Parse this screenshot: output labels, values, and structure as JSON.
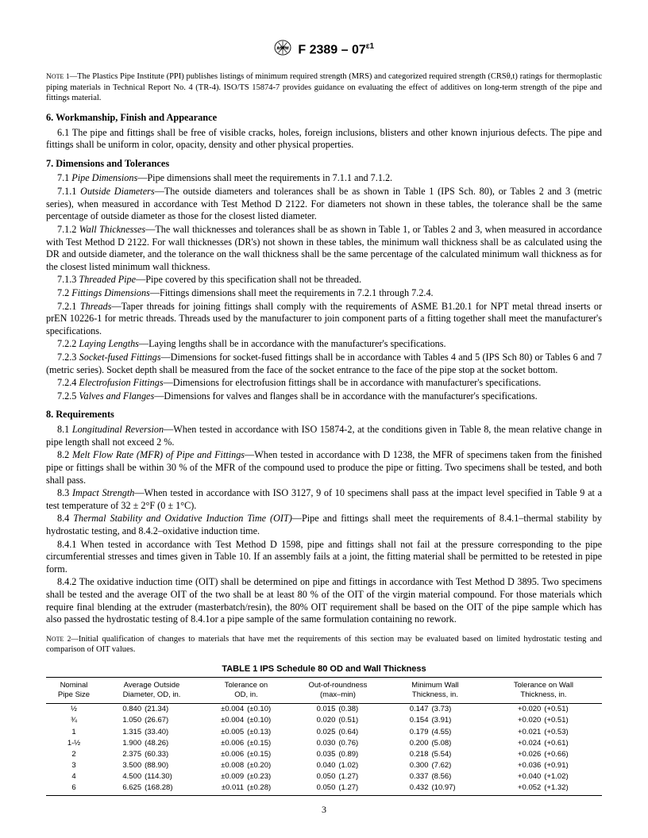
{
  "header": {
    "designation": "F 2389 – 07",
    "eps": "ε1"
  },
  "note1": {
    "label": "NOTE 1—",
    "text": "The Plastics Pipe Institute (PPI) publishes listings of minimum required strength (MRS) and categorized required strength (CRSθ,t) ratings for thermoplastic piping materials in Technical Report No. 4 (TR-4). ISO/TS 15874-7 provides guidance on evaluating the effect of additives on long-term strength of the pipe and fittings material."
  },
  "s6": {
    "title": "6.  Workmanship, Finish and Appearance",
    "p1": "6.1  The pipe and fittings shall be free of visible cracks, holes, foreign inclusions, blisters and other known injurious defects. The pipe and fittings shall be uniform in color, opacity, density and other physical properties."
  },
  "s7": {
    "title": "7.  Dimensions and Tolerances",
    "p71a": "7.1 ",
    "p71i": "Pipe Dimensions",
    "p71b": "—Pipe dimensions shall meet the requirements in 7.1.1 and 7.1.2.",
    "p711a": "7.1.1 ",
    "p711i": "Outside Diameters",
    "p711b": "—The outside diameters and tolerances shall be as shown in Table 1 (IPS Sch. 80), or Tables 2 and 3 (metric series), when measured in accordance with Test Method D 2122. For diameters not shown in these tables, the tolerance shall be the same percentage of outside diameter as those for the closest listed diameter.",
    "p712a": "7.1.2 ",
    "p712i": "Wall Thicknesses",
    "p712b": "—The wall thicknesses and tolerances shall be as shown in Table 1, or Tables 2 and 3, when measured in accordance with Test Method D 2122. For wall thicknesses (DR's) not shown in these tables, the minimum wall thickness shall be as calculated using the DR and outside diameter, and the tolerance on the wall thickness shall be the same percentage of the calculated minimum wall thickness as for the closest listed minimum wall thickness.",
    "p713a": "7.1.3 ",
    "p713i": "Threaded Pipe",
    "p713b": "—Pipe covered by this specification shall not be threaded.",
    "p72a": "7.2 ",
    "p72i": "Fittings Dimensions",
    "p72b": "—Fittings dimensions shall meet the requirements in 7.2.1 through 7.2.4.",
    "p721a": "7.2.1 ",
    "p721i": "Threads",
    "p721b": "—Taper threads for joining fittings shall comply with the requirements of ASME B1.20.1 for NPT metal thread inserts or prEN 10226-1 for metric threads. Threads used by the manufacturer to join component parts of a fitting together shall meet the manufacturer's specifications.",
    "p722a": "7.2.2 ",
    "p722i": "Laying Lengths",
    "p722b": "—Laying lengths shall be in accordance with the manufacturer's specifications.",
    "p723a": "7.2.3 ",
    "p723i": "Socket-fused Fittings",
    "p723b": "—Dimensions for socket-fused fittings shall be in accordance with Tables 4 and 5 (IPS Sch 80) or Tables 6 and 7 (metric series). Socket depth shall be measured from the face of the socket entrance to the face of the pipe stop at the socket bottom.",
    "p724a": "7.2.4 ",
    "p724i": "Electrofusion Fittings",
    "p724b": "—Dimensions for electrofusion fittings shall be in accordance with manufacturer's specifications.",
    "p725a": "7.2.5 ",
    "p725i": "Valves and Flanges",
    "p725b": "—Dimensions for valves and flanges shall be in accordance with the manufacturer's specifications."
  },
  "s8": {
    "title": "8.  Requirements",
    "p81a": "8.1 ",
    "p81i": "Longitudinal Reversion",
    "p81b": "—When tested in accordance with ISO 15874-2, at the conditions given in Table 8, the mean relative change in pipe length shall not exceed 2 %.",
    "p82a": "8.2 ",
    "p82i": "Melt Flow Rate (MFR) of Pipe and Fittings",
    "p82b": "—When tested in accordance with D 1238, the MFR of specimens taken from the finished pipe or fittings shall be within 30 % of the MFR of the compound used to produce the pipe or fitting. Two specimens shall be tested, and both shall pass.",
    "p83a": "8.3 ",
    "p83i": "Impact Strength",
    "p83b": "—When tested in accordance with ISO 3127, 9 of 10 specimens shall pass at the impact level specified in Table 9 at a test temperature of 32 ± 2°F (0 ± 1°C).",
    "p84a": "8.4 ",
    "p84i": "Thermal Stability and Oxidative Induction Time (OIT)",
    "p84b": "—Pipe and fittings shall meet the requirements of 8.4.1–thermal stability by hydrostatic testing, and 8.4.2–oxidative induction time.",
    "p841": "8.4.1  When tested in accordance with Test Method D 1598, pipe and fittings shall not fail at the pressure corresponding to the pipe circumferential stresses and times given in Table 10. If an assembly fails at a joint, the fitting material shall be permitted to be retested in pipe form.",
    "p842": "8.4.2  The oxidative induction time (OIT) shall be determined on pipe and fittings in accordance with Test Method D 3895. Two specimens shall be tested and the average OIT of the two shall be at least 80 % of the OIT of the virgin material compound. For those materials which require final blending at the extruder (masterbatch/resin), the 80% OIT requirement shall be based on the OIT of the pipe sample which has also passed the hydrostatic testing of 8.4.1or a pipe sample of the same formulation containing no rework."
  },
  "note2": {
    "label": "NOTE 2—",
    "text": "Initial qualification of changes to materials that have met the requirements of this section may be evaluated based on limited hydrostatic testing and comparison of OIT values."
  },
  "table1": {
    "caption": "TABLE 1  IPS Schedule 80 OD and Wall Thickness",
    "headers": [
      "Nominal\nPipe Size",
      "Average Outside\nDiameter, OD, in.",
      "Tolerance on\nOD, in.",
      "Out-of-roundness\n(max–min)",
      "Minimum Wall\nThickness, in.",
      "Tolerance on Wall\nThickness, in."
    ],
    "rows": [
      [
        "½",
        "0.840",
        "(21.34)",
        "±0.004",
        "(±0.10)",
        "0.015",
        "(0.38)",
        "0.147",
        "(3.73)",
        "+0.020",
        "(+0.51)"
      ],
      [
        "¾",
        "1.050",
        "(26.67)",
        "±0.004",
        "(±0.10)",
        "0.020",
        "(0.51)",
        "0.154",
        "(3.91)",
        "+0.020",
        "(+0.51)"
      ],
      [
        "1",
        "1.315",
        "(33.40)",
        "±0.005",
        "(±0.13)",
        "0.025",
        "(0.64)",
        "0.179",
        "(4.55)",
        "+0.021",
        "(+0.53)"
      ],
      [
        "1-½",
        "1.900",
        "(48.26)",
        "±0.006",
        "(±0.15)",
        "0.030",
        "(0.76)",
        "0.200",
        "(5.08)",
        "+0.024",
        "(+0.61)"
      ],
      [
        "2",
        "2.375",
        "(60.33)",
        "±0.006",
        "(±0.15)",
        "0.035",
        "(0.89)",
        "0.218",
        "(5.54)",
        "+0.026",
        "(+0.66)"
      ],
      [
        "3",
        "3.500",
        "(88.90)",
        "±0.008",
        "(±0.20)",
        "0.040",
        "(1.02)",
        "0.300",
        "(7.62)",
        "+0.036",
        "(+0.91)"
      ],
      [
        "4",
        "4.500",
        "(114.30)",
        "±0.009",
        "(±0.23)",
        "0.050",
        "(1.27)",
        "0.337",
        "(8.56)",
        "+0.040",
        "(+1.02)"
      ],
      [
        "6",
        "6.625",
        "(168.28)",
        "±0.011",
        "(±0.28)",
        "0.050",
        "(1.27)",
        "0.432",
        "(10.97)",
        "+0.052",
        "(+1.32)"
      ]
    ]
  },
  "pagenum": "3"
}
